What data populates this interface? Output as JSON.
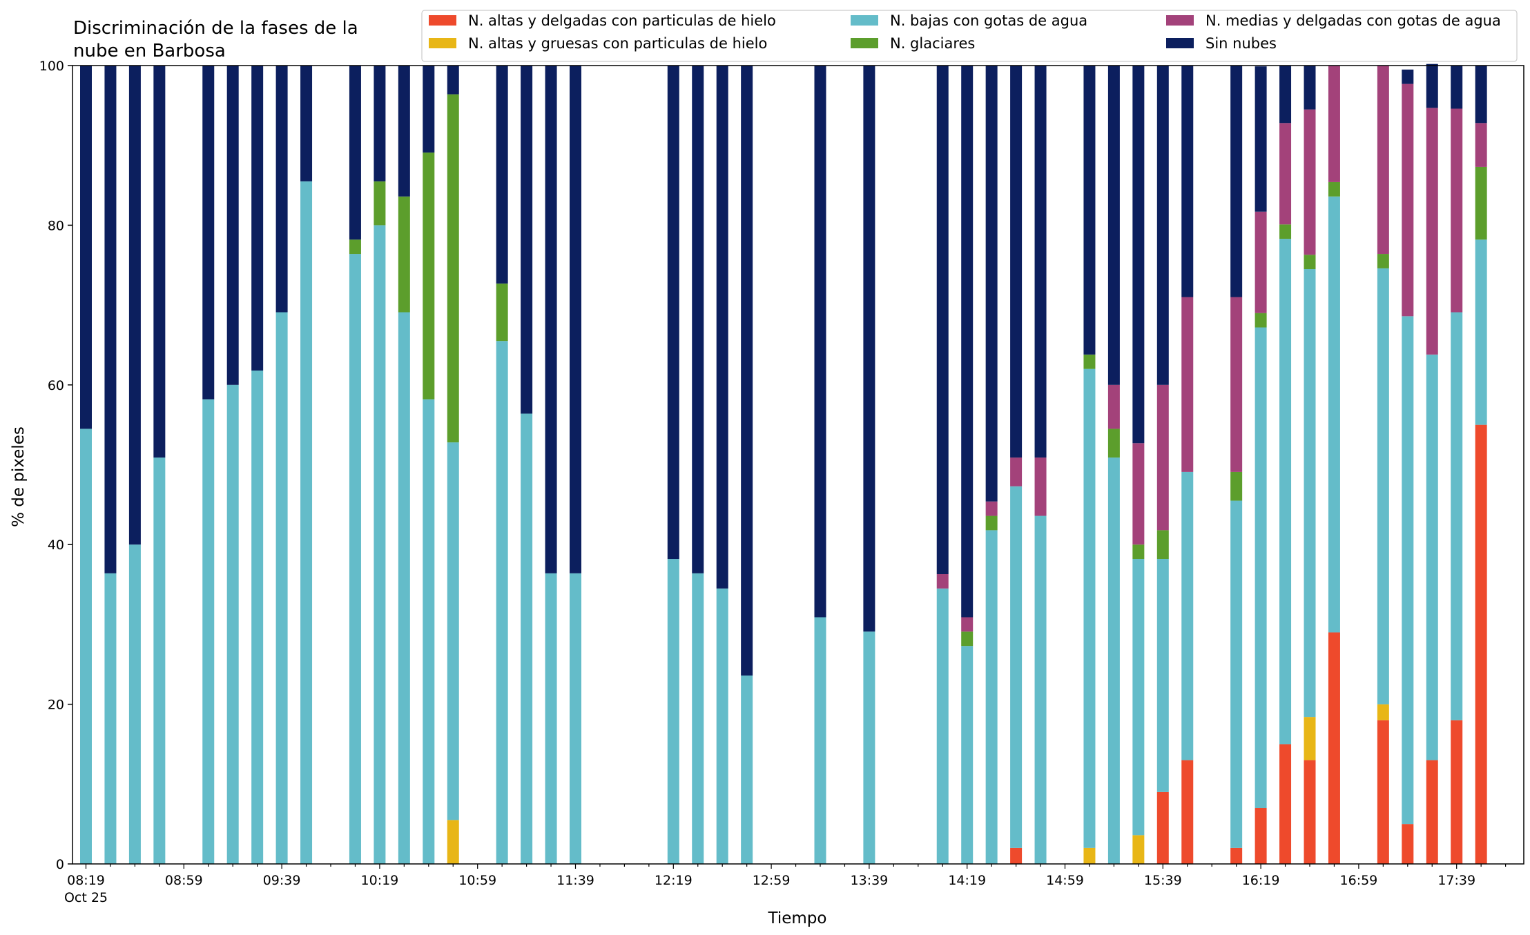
{
  "chart_data": {
    "type": "bar",
    "stacked": true,
    "title_lines": [
      "Discriminación de la fases de la",
      "nube en Barbosa"
    ],
    "xlabel": "Tiempo",
    "ylabel": "% de pixeles",
    "ylim": [
      0,
      100
    ],
    "yticks": [
      0,
      20,
      40,
      60,
      80,
      100
    ],
    "x_start_time": "08:19",
    "x_step_minutes": 10,
    "slot_count": 59,
    "xtick_labels": [
      "08:19",
      "08:59",
      "09:39",
      "10:19",
      "10:59",
      "11:39",
      "12:19",
      "12:59",
      "13:39",
      "14:19",
      "14:59",
      "15:39",
      "16:19",
      "16:59",
      "17:39"
    ],
    "xtick_sublabel": "Oct 25",
    "legend_position": "top-right",
    "grid": false,
    "categories": [
      "08:19",
      "08:29",
      "08:39",
      "08:49",
      "08:59",
      "09:09",
      "09:19",
      "09:29",
      "09:39",
      "09:49",
      "09:59",
      "10:09",
      "10:19",
      "10:29",
      "10:39",
      "10:49",
      "10:59",
      "11:09",
      "11:19",
      "11:29",
      "11:39",
      "11:49",
      "11:59",
      "12:09",
      "12:19",
      "12:29",
      "12:39",
      "12:49",
      "12:59",
      "13:09",
      "13:19",
      "13:29",
      "13:39",
      "13:49",
      "13:59",
      "14:09",
      "14:19",
      "14:29",
      "14:39",
      "14:49",
      "14:59",
      "15:09",
      "15:19",
      "15:29",
      "15:39",
      "15:49",
      "15:59",
      "16:09",
      "16:19",
      "16:29",
      "16:39",
      "16:49",
      "16:59",
      "17:09",
      "17:19",
      "17:29",
      "17:39",
      "17:49",
      "17:59"
    ],
    "series": [
      {
        "name": "N. altas y delgadas con particulas de hielo",
        "color": "#ee4a2c",
        "values": [
          0,
          0,
          0,
          0,
          null,
          0,
          0,
          0,
          0,
          0,
          null,
          0,
          0,
          0,
          0,
          0,
          null,
          0,
          0,
          0,
          0,
          null,
          null,
          null,
          0,
          0,
          0,
          0,
          null,
          null,
          0,
          null,
          0,
          null,
          null,
          0,
          0,
          0,
          2,
          0,
          null,
          0,
          0,
          0,
          9,
          13,
          null,
          2,
          7,
          15,
          13,
          29,
          null,
          18,
          5,
          13,
          18,
          55,
          null
        ]
      },
      {
        "name": "N. altas y gruesas con particulas de hielo",
        "color": "#e8b616",
        "values": [
          0,
          0,
          0,
          0,
          null,
          0,
          0,
          0,
          0,
          0,
          null,
          0,
          0,
          0,
          0,
          5.5,
          null,
          0,
          0,
          0,
          0,
          null,
          null,
          null,
          0,
          0,
          0,
          0,
          null,
          null,
          0,
          null,
          0,
          null,
          null,
          0,
          0,
          0,
          0,
          0,
          null,
          2,
          0,
          3.6,
          0,
          0,
          null,
          0,
          0,
          0,
          5.4,
          0,
          null,
          2,
          0,
          0,
          0,
          0,
          null
        ]
      },
      {
        "name": "N. bajas con gotas de agua",
        "color": "#64bcc9",
        "values": [
          54.5,
          36.4,
          40,
          50.9,
          null,
          58.2,
          60,
          61.8,
          69.1,
          85.5,
          null,
          76.4,
          80,
          69.1,
          58.2,
          47.3,
          null,
          65.5,
          56.4,
          36.4,
          36.4,
          null,
          null,
          null,
          38.2,
          36.4,
          34.5,
          23.6,
          null,
          null,
          30.9,
          null,
          29.1,
          null,
          null,
          34.5,
          27.3,
          41.8,
          45.3,
          43.6,
          null,
          60,
          50.9,
          34.6,
          29.2,
          36.1,
          null,
          43.5,
          60.2,
          63.3,
          56.1,
          54.6,
          null,
          54.6,
          63.6,
          50.8,
          51.1,
          23.2,
          null
        ]
      },
      {
        "name": "N. glaciares",
        "color": "#5c9e2c",
        "values": [
          0,
          0,
          0,
          0,
          null,
          0,
          0,
          0,
          0,
          0,
          null,
          1.8,
          5.5,
          14.5,
          30.9,
          43.6,
          null,
          7.2,
          0,
          0,
          0,
          null,
          null,
          null,
          0,
          0,
          0,
          0,
          null,
          null,
          0,
          null,
          0,
          null,
          null,
          0,
          1.8,
          1.8,
          0,
          0,
          null,
          1.8,
          3.6,
          1.8,
          3.6,
          0,
          null,
          3.6,
          1.8,
          1.8,
          1.8,
          1.8,
          null,
          1.8,
          0,
          0,
          0,
          9.1,
          null
        ]
      },
      {
        "name": "N. medias y delgadas con gotas de agua",
        "color": "#a3427a",
        "values": [
          0,
          0,
          0,
          0,
          null,
          0,
          0,
          0,
          0,
          0,
          null,
          0,
          0,
          0,
          0,
          0,
          null,
          0,
          0,
          0,
          0,
          null,
          null,
          null,
          0,
          0,
          0,
          0,
          null,
          null,
          0,
          null,
          0,
          null,
          null,
          1.8,
          1.8,
          1.8,
          3.6,
          7.3,
          null,
          0,
          5.5,
          12.7,
          18.2,
          21.9,
          null,
          21.9,
          12.7,
          12.7,
          18.2,
          14.6,
          null,
          23.6,
          29.1,
          30.9,
          25.5,
          5.5,
          null
        ]
      },
      {
        "name": "Sin nubes",
        "color": "#0c1f5e",
        "values": [
          45.5,
          63.6,
          60,
          49.1,
          null,
          41.8,
          40,
          38.2,
          30.9,
          14.5,
          null,
          21.8,
          14.5,
          16.4,
          10.9,
          3.6,
          null,
          27.3,
          43.6,
          63.6,
          63.6,
          null,
          null,
          null,
          61.8,
          63.6,
          65.5,
          76.4,
          null,
          null,
          69.1,
          null,
          70.9,
          null,
          null,
          63.7,
          69.1,
          54.6,
          49.1,
          49.1,
          null,
          36.2,
          40,
          47.3,
          40,
          29,
          null,
          29,
          18.2,
          7.2,
          5.5,
          0,
          null,
          0,
          1.8,
          5.5,
          5.4,
          7.2,
          null
        ]
      }
    ]
  }
}
